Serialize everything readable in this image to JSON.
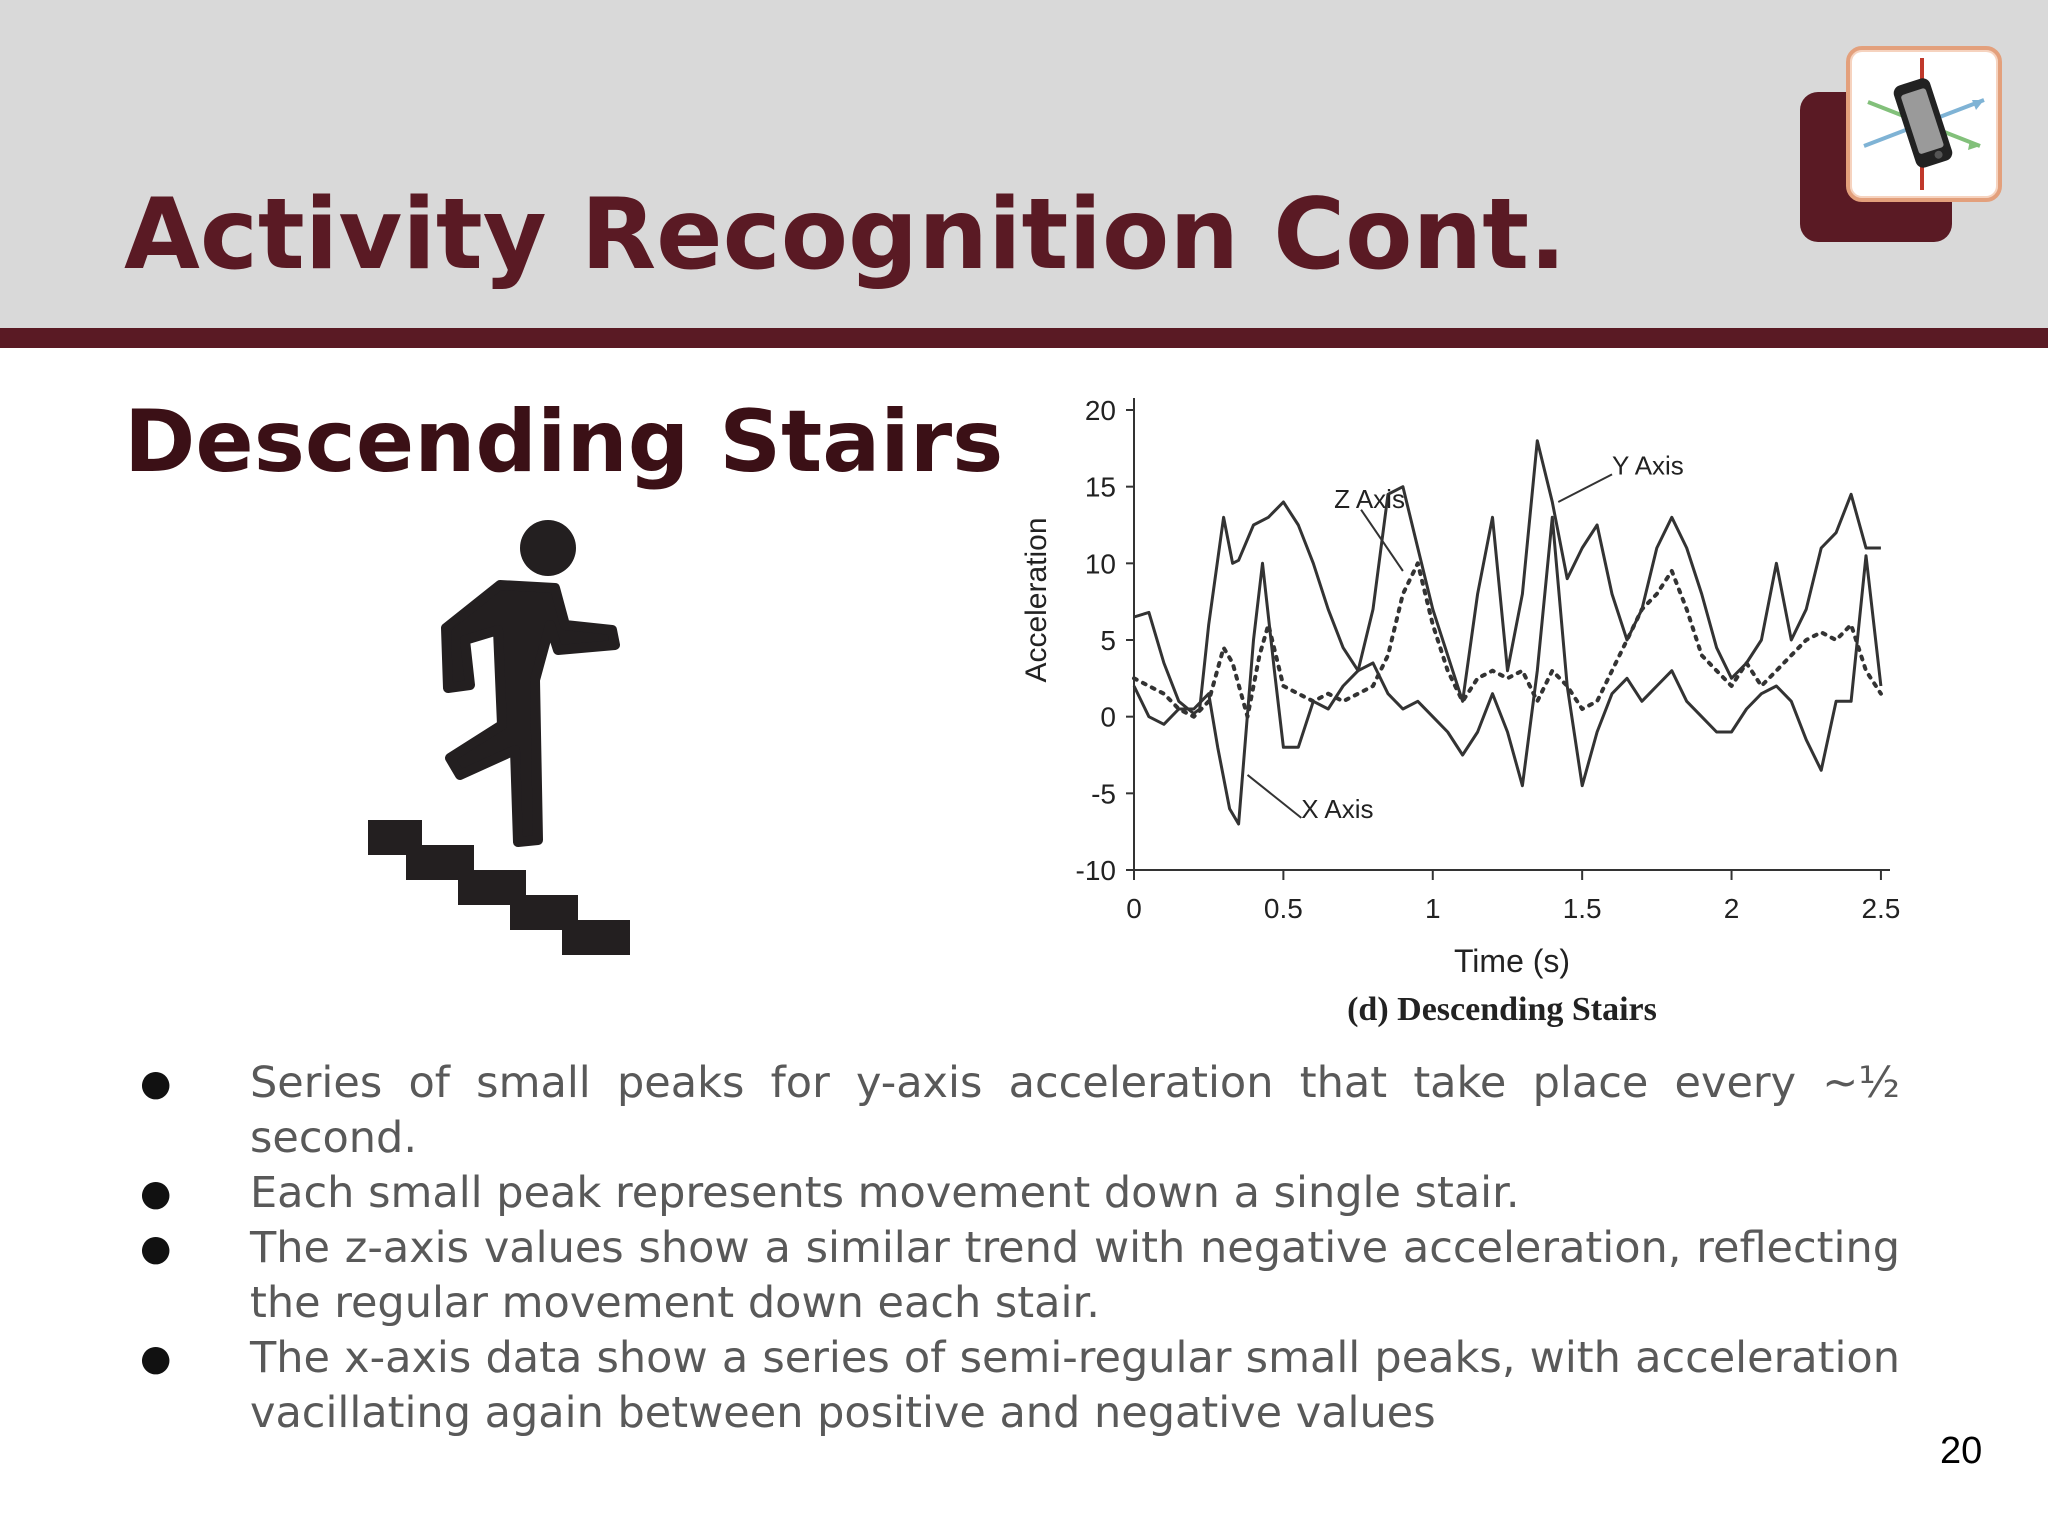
{
  "slide": {
    "title": "Activity Recognition Cont.",
    "subtitle": "Descending Stairs",
    "page_number": "20",
    "colors": {
      "accent": "#5a1a24",
      "header_bg": "#d9d9d9",
      "body_text": "#595959",
      "logo_border": "#e3a07c"
    }
  },
  "icons": {
    "logo": "phone-accelerometer-axes-icon",
    "figure": "person-descending-stairs-icon"
  },
  "bullets": [
    "Series of small peaks for y-axis acceleration that take place every ~½ second.",
    "Each small peak represents movement down a single stair.",
    "The z-axis values show a similar trend with negative acceleration, reflecting the regular movement down each stair.",
    "The x-axis data show a series of semi-regular small peaks, with acceleration vacillating again between positive and negative values"
  ],
  "bullet_marker": "●",
  "chart_data": {
    "type": "line",
    "title": "(d) Descending Stairs",
    "xlabel": "Time (s)",
    "ylabel": "Acceleration",
    "xlim": [
      0,
      2.5
    ],
    "ylim": [
      -10,
      20
    ],
    "xticks": [
      "0",
      "0.5",
      "1",
      "1.5",
      "2",
      "2.5"
    ],
    "yticks": [
      "-10",
      "-5",
      "0",
      "5",
      "10",
      "15",
      "20"
    ],
    "grid": false,
    "legend": "inline labels",
    "annotations": [
      {
        "text": "Y Axis",
        "x": 1.6,
        "y": 15.8
      },
      {
        "text": "Z Axis",
        "x": 0.67,
        "y": 13.6
      },
      {
        "text": "X Axis",
        "x": 0.56,
        "y": -6.6
      }
    ],
    "series": [
      {
        "name": "Y Axis",
        "style": "solid",
        "x": [
          0,
          0.05,
          0.1,
          0.15,
          0.2,
          0.22,
          0.25,
          0.3,
          0.33,
          0.35,
          0.4,
          0.45,
          0.5,
          0.55,
          0.6,
          0.65,
          0.7,
          0.75,
          0.8,
          0.85,
          0.9,
          0.95,
          1.0,
          1.05,
          1.1,
          1.15,
          1.2,
          1.25,
          1.3,
          1.35,
          1.4,
          1.45,
          1.5,
          1.55,
          1.6,
          1.65,
          1.7,
          1.75,
          1.8,
          1.85,
          1.9,
          1.95,
          2.0,
          2.05,
          2.1,
          2.15,
          2.2,
          2.25,
          2.3,
          2.35,
          2.4,
          2.45,
          2.5
        ],
        "y": [
          6.5,
          6.8,
          3.5,
          1.0,
          0.2,
          0.5,
          6.0,
          13.0,
          10.0,
          10.2,
          12.5,
          13.0,
          14.0,
          12.5,
          10.0,
          7.0,
          4.5,
          3.0,
          7.0,
          14.5,
          15.0,
          11.0,
          7.0,
          4.0,
          1.0,
          8.0,
          13.0,
          3.0,
          8.0,
          18.0,
          14.0,
          9.0,
          11.0,
          12.5,
          8.0,
          5.0,
          7.0,
          11.0,
          13.0,
          11.0,
          8.0,
          4.5,
          2.5,
          3.5,
          5.0,
          10.0,
          5.0,
          7.0,
          11.0,
          12.0,
          14.5,
          11.0,
          11.0
        ]
      },
      {
        "name": "Z Axis",
        "style": "dotted",
        "x": [
          0,
          0.05,
          0.1,
          0.15,
          0.2,
          0.25,
          0.3,
          0.33,
          0.38,
          0.42,
          0.45,
          0.5,
          0.55,
          0.6,
          0.65,
          0.7,
          0.75,
          0.8,
          0.85,
          0.9,
          0.95,
          1.0,
          1.05,
          1.1,
          1.15,
          1.2,
          1.25,
          1.3,
          1.35,
          1.4,
          1.45,
          1.5,
          1.55,
          1.6,
          1.65,
          1.7,
          1.75,
          1.8,
          1.85,
          1.9,
          1.95,
          2.0,
          2.05,
          2.1,
          2.15,
          2.2,
          2.25,
          2.3,
          2.35,
          2.4,
          2.45,
          2.5
        ],
        "y": [
          2.5,
          2.0,
          1.5,
          0.5,
          0.0,
          1.0,
          4.5,
          3.5,
          0.0,
          4.0,
          6.0,
          2.0,
          1.5,
          1.0,
          1.5,
          1.0,
          1.5,
          2.0,
          4.0,
          8.0,
          10.0,
          6.0,
          3.0,
          1.0,
          2.5,
          3.0,
          2.5,
          3.0,
          1.0,
          3.0,
          2.0,
          0.5,
          1.0,
          3.0,
          5.0,
          7.0,
          8.0,
          9.5,
          7.0,
          4.0,
          3.0,
          2.0,
          3.5,
          2.0,
          3.0,
          4.0,
          5.0,
          5.5,
          5.0,
          6.0,
          3.0,
          1.5
        ]
      },
      {
        "name": "X Axis",
        "style": "solid",
        "x": [
          0,
          0.05,
          0.1,
          0.15,
          0.2,
          0.25,
          0.28,
          0.32,
          0.35,
          0.4,
          0.43,
          0.47,
          0.5,
          0.55,
          0.6,
          0.65,
          0.7,
          0.75,
          0.8,
          0.85,
          0.9,
          0.95,
          1.0,
          1.05,
          1.1,
          1.15,
          1.2,
          1.25,
          1.3,
          1.35,
          1.4,
          1.45,
          1.5,
          1.55,
          1.6,
          1.65,
          1.7,
          1.75,
          1.8,
          1.85,
          1.9,
          1.95,
          2.0,
          2.05,
          2.1,
          2.15,
          2.2,
          2.25,
          2.3,
          2.35,
          2.4,
          2.45,
          2.5
        ],
        "y": [
          2.0,
          0.0,
          -0.5,
          0.5,
          0.5,
          1.5,
          -2.0,
          -6.0,
          -7.0,
          5.0,
          10.0,
          3.0,
          -2.0,
          -2.0,
          1.0,
          0.5,
          2.0,
          3.0,
          3.5,
          1.5,
          0.5,
          1.0,
          0.0,
          -1.0,
          -2.5,
          -1.0,
          1.5,
          -1.0,
          -4.5,
          3.0,
          13.0,
          2.0,
          -4.5,
          -1.0,
          1.5,
          2.5,
          1.0,
          2.0,
          3.0,
          1.0,
          0.0,
          -1.0,
          -1.0,
          0.5,
          1.5,
          2.0,
          1.0,
          -1.5,
          -3.5,
          1.0,
          1.0,
          10.5,
          2.0
        ]
      }
    ]
  }
}
